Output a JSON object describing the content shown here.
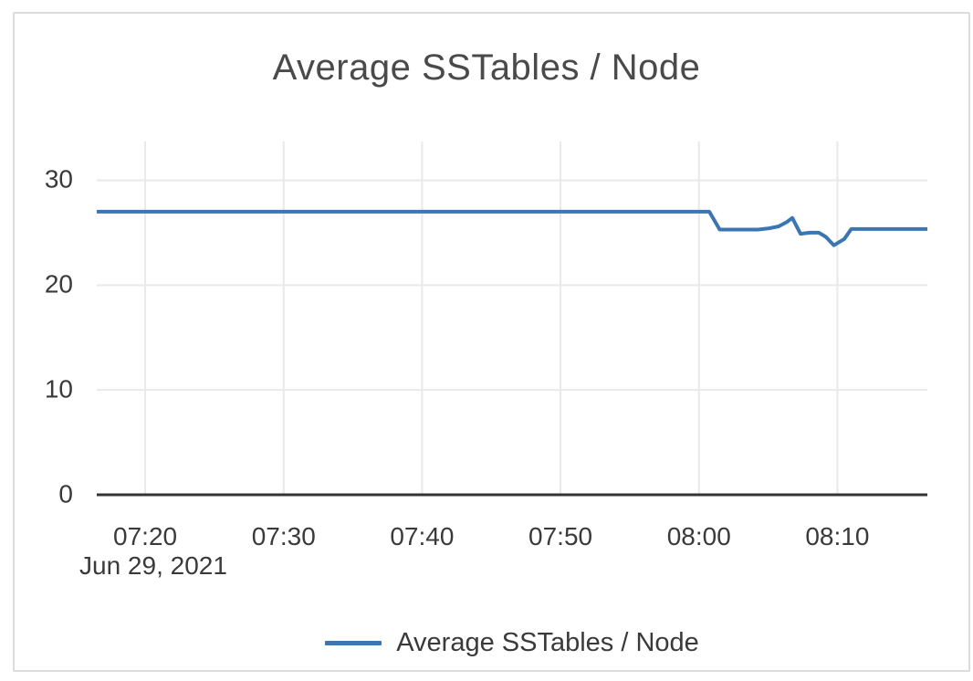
{
  "chart_data": {
    "type": "line",
    "title": "Average SSTables / Node",
    "x_date_label": "Jun 29, 2021",
    "x_ticks": [
      "07:20",
      "07:30",
      "07:40",
      "07:50",
      "08:00",
      "08:10"
    ],
    "y_ticks": [
      "0",
      "10",
      "20",
      "30"
    ],
    "ylim": [
      0,
      33.7
    ],
    "x_range": [
      "07:16:30",
      "08:16:30"
    ],
    "grid": true,
    "legend_position": "bottom-center",
    "series": [
      {
        "name": "Average SSTables / Node",
        "color": "#3b76b3",
        "points": [
          [
            "07:16:30",
            27
          ],
          [
            "08:00:45",
            27
          ],
          [
            "08:01:30",
            25.3
          ],
          [
            "08:04:15",
            25.3
          ],
          [
            "08:05:00",
            25.4
          ],
          [
            "08:05:45",
            25.6
          ],
          [
            "08:06:20",
            26.0
          ],
          [
            "08:06:45",
            26.4
          ],
          [
            "08:07:20",
            24.9
          ],
          [
            "08:08:00",
            25.0
          ],
          [
            "08:08:40",
            25.0
          ],
          [
            "08:09:10",
            24.6
          ],
          [
            "08:09:45",
            23.8
          ],
          [
            "08:10:30",
            24.4
          ],
          [
            "08:11:00",
            25.35
          ],
          [
            "08:16:30",
            25.35
          ]
        ]
      }
    ]
  },
  "colors": {
    "line": "#3b76b3",
    "gridline": "#e9e9e9",
    "axis": "#333333",
    "card_border": "#dcdcdc",
    "title_text": "#4a4a4a",
    "tick_text": "#3a3a3a",
    "background": "#ffffff"
  }
}
